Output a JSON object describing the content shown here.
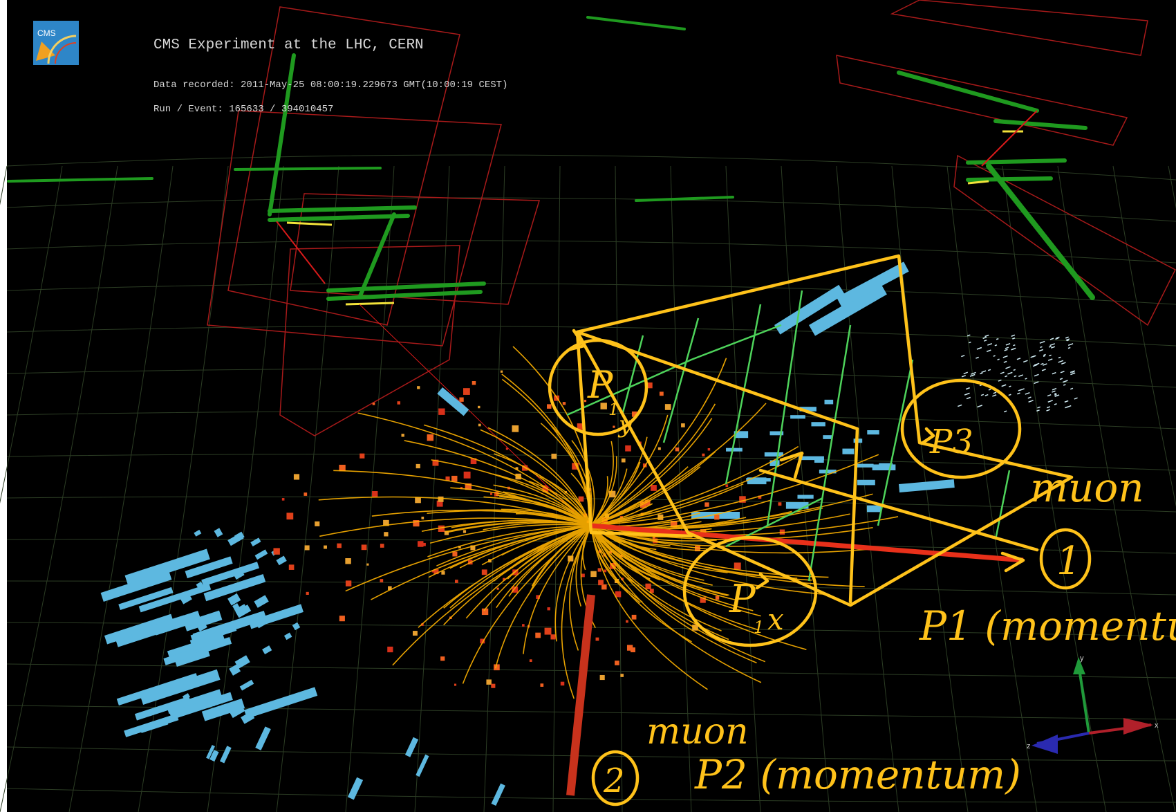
{
  "header": {
    "logo_text": "CMS",
    "title": "CMS Experiment at the LHC, CERN",
    "data_recorded": "Data recorded: 2011-May-25 08:00:19.229673 GMT(10:00:19 CEST)",
    "run_event": "Run / Event: 165633 / 394010457"
  },
  "annotations": {
    "p1y": {
      "main": "P",
      "sub": "y",
      "index": "1"
    },
    "p3": "P3",
    "p1x": {
      "main": "P",
      "sub": "x",
      "index": "1"
    },
    "muon_1_label": "muon",
    "circle_1": "1",
    "p1_momentum": "P1 (momentum)",
    "muon_2_label": "muon",
    "circle_2": "2",
    "p2_momentum": "P2 (momentum)"
  },
  "axes_gizmo": {
    "x": "x",
    "y": "y",
    "z": "z"
  },
  "colors": {
    "background": "#000000",
    "frame": "#ffffff",
    "tracks": "#ffb300",
    "annotation": "#ffc21a",
    "muon_chambers": "#1e9a1e",
    "chamber_frames": "#b01818",
    "hcal_towers": "#5db8e0",
    "ecal_hits": "#e0401a",
    "grid": "#2a3a22"
  }
}
